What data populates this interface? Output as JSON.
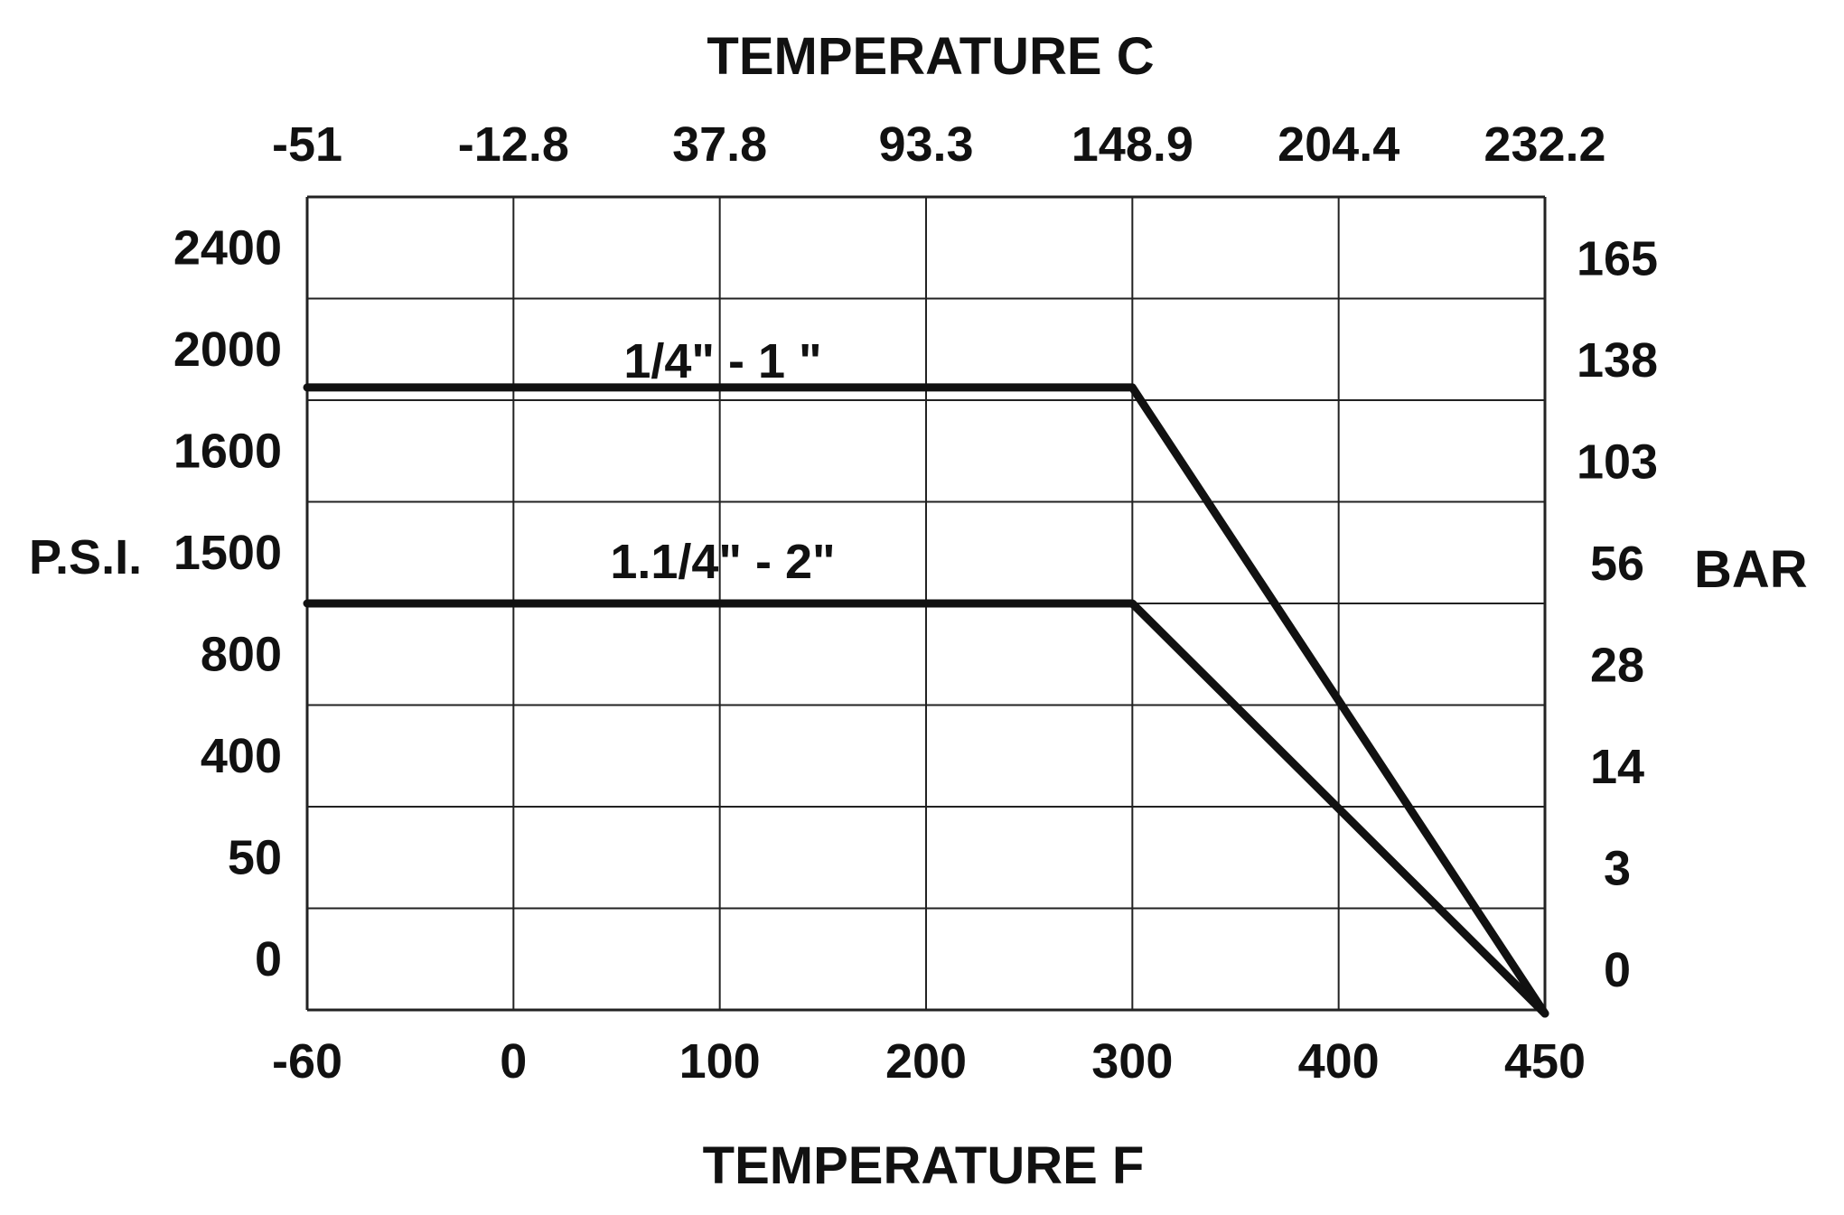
{
  "chart_data": {
    "type": "line",
    "title": "",
    "top_axis_title": "TEMPERATURE   C",
    "bottom_axis_title": "TEMPERATURE   F",
    "left_axis_title": "P.S.I.",
    "right_axis_title": "BAR",
    "bottom_ticks": [
      "-60",
      "0",
      "100",
      "200",
      "300",
      "400",
      "450"
    ],
    "top_ticks": [
      "-51",
      "-12.8",
      "37.8",
      "93.3",
      "148.9",
      "204.4",
      "232.2"
    ],
    "left_ticks": [
      "0",
      "50",
      "400",
      "800",
      "1500",
      "1600",
      "2000",
      "2400"
    ],
    "right_ticks": [
      "0",
      "3",
      "14",
      "28",
      "56",
      "103",
      "138",
      "165"
    ],
    "xlim": [
      -60,
      450
    ],
    "grid": true,
    "series": [
      {
        "name": "1/4\" - 1 \"",
        "points": [
          {
            "x": -60,
            "y": 1850
          },
          {
            "x": 300,
            "y": 1850
          },
          {
            "x": 450,
            "y": 0
          }
        ]
      },
      {
        "name": "1.1/4\" - 2\"",
        "points": [
          {
            "x": -60,
            "y": 1150
          },
          {
            "x": 300,
            "y": 1150
          },
          {
            "x": 450,
            "y": 0
          }
        ]
      }
    ]
  },
  "colors": {
    "line": "#111111",
    "grid": "#222222",
    "background": "#ffffff"
  }
}
